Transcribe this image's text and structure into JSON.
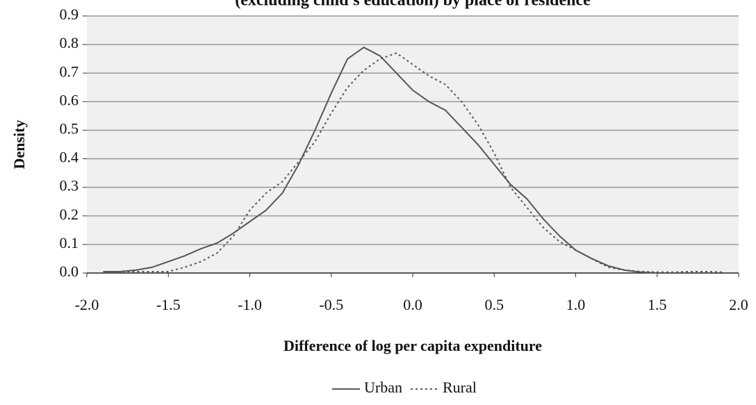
{
  "chart_data": {
    "type": "line",
    "title": "(excluding child's education) by place of residence",
    "x_label": "Difference of log per capita expenditure",
    "y_label": "Density",
    "x": [
      -1.9,
      -1.8,
      -1.7,
      -1.6,
      -1.5,
      -1.4,
      -1.3,
      -1.2,
      -1.1,
      -1.0,
      -0.9,
      -0.8,
      -0.7,
      -0.6,
      -0.5,
      -0.4,
      -0.3,
      -0.2,
      -0.1,
      0.0,
      0.1,
      0.2,
      0.3,
      0.4,
      0.5,
      0.6,
      0.7,
      0.8,
      0.9,
      1.0,
      1.1,
      1.2,
      1.3,
      1.4,
      1.5,
      1.6,
      1.7,
      1.8,
      1.9
    ],
    "series": [
      {
        "name": "Urban",
        "color": "#555555",
        "style": "solid",
        "values": [
          0.005,
          0.005,
          0.01,
          0.02,
          0.04,
          0.06,
          0.085,
          0.105,
          0.14,
          0.18,
          0.22,
          0.28,
          0.38,
          0.5,
          0.63,
          0.75,
          0.79,
          0.76,
          0.7,
          0.64,
          0.6,
          0.57,
          0.51,
          0.45,
          0.38,
          0.31,
          0.26,
          0.19,
          0.13,
          0.08,
          0.05,
          0.025,
          0.01,
          0.003,
          0,
          0,
          0,
          0,
          0
        ]
      },
      {
        "name": "Rural",
        "color": "#555555",
        "style": "dotted",
        "values": [
          0.005,
          0.005,
          0.005,
          0.005,
          0.005,
          0.02,
          0.04,
          0.07,
          0.13,
          0.22,
          0.28,
          0.32,
          0.39,
          0.46,
          0.56,
          0.65,
          0.71,
          0.75,
          0.77,
          0.73,
          0.69,
          0.66,
          0.6,
          0.52,
          0.42,
          0.3,
          0.23,
          0.16,
          0.11,
          0.08,
          0.05,
          0.02,
          0.01,
          0.005,
          0.003,
          0.003,
          0.005,
          0.005,
          0.003
        ]
      }
    ],
    "xlim": [
      -2,
      2
    ],
    "xticks": [
      {
        "value": -2,
        "label": "-2.0"
      },
      -1.5,
      {
        "value": -1,
        "label": "-1.0"
      },
      -0.5,
      {
        "value": 0,
        "label": "0.0"
      },
      0.5,
      {
        "value": 1,
        "label": "1.0"
      },
      1.5,
      {
        "value": 2,
        "label": "2.0"
      }
    ],
    "ylim": [
      0,
      0.9
    ],
    "yticks": [
      {
        "value": 0,
        "label": "0.0"
      },
      0.1,
      0.2,
      0.3,
      0.4,
      0.5,
      0.6,
      0.7,
      0.8,
      0.9
    ],
    "grid": true,
    "legend": "bottom"
  }
}
